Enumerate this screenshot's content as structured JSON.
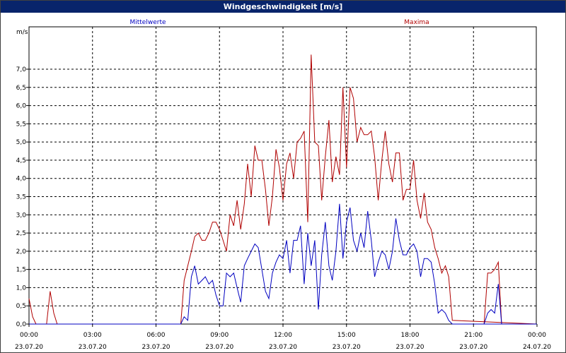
{
  "window": {
    "title": "Windgeschwindigkeit [m/s]"
  },
  "chart_data": {
    "type": "line",
    "title": "Windgeschwindigkeit [m/s]",
    "ylabel": "m/s",
    "ylim": [
      -0.4,
      7.7
    ],
    "xlim": [
      0,
      24
    ],
    "grid": true,
    "legend": [
      "Mittelwerte",
      "Maxima"
    ],
    "legend_placement": "top",
    "y_ticks": [
      "0,0",
      "0,5",
      "1,0",
      "1,5",
      "2,0",
      "2,5",
      "3,0",
      "3,5",
      "4,0",
      "4,5",
      "5,0",
      "5,5",
      "6,0",
      "6,5",
      "7,0"
    ],
    "x_ticks": [
      {
        "time": "00:00",
        "date": "23.07.20"
      },
      {
        "time": "03:00",
        "date": "23.07.20"
      },
      {
        "time": "06:00",
        "date": "23.07.20"
      },
      {
        "time": "09:00",
        "date": "23.07.20"
      },
      {
        "time": "12:00",
        "date": "23.07.20"
      },
      {
        "time": "15:00",
        "date": "23.07.20"
      },
      {
        "time": "18:00",
        "date": "23.07.20"
      },
      {
        "time": "21:00",
        "date": "23.07.20"
      },
      {
        "time": "00:00",
        "date": "24.07.20"
      }
    ],
    "series": [
      {
        "name": "Mittelwerte",
        "color": "#0000c0",
        "x": [
          0,
          7.17,
          7.33,
          7.5,
          7.67,
          7.83,
          8.0,
          8.17,
          8.33,
          8.5,
          8.67,
          8.83,
          9.0,
          9.17,
          9.33,
          9.5,
          9.67,
          9.83,
          10.0,
          10.17,
          10.33,
          10.5,
          10.67,
          10.83,
          11.0,
          11.17,
          11.33,
          11.5,
          11.67,
          11.83,
          12.0,
          12.17,
          12.33,
          12.5,
          12.67,
          12.83,
          13.0,
          13.17,
          13.33,
          13.5,
          13.67,
          13.83,
          14.0,
          14.17,
          14.33,
          14.5,
          14.67,
          14.83,
          15.0,
          15.17,
          15.33,
          15.5,
          15.67,
          15.83,
          16.0,
          16.17,
          16.33,
          16.5,
          16.67,
          16.83,
          17.0,
          17.17,
          17.33,
          17.5,
          17.67,
          17.83,
          18.0,
          18.17,
          18.33,
          18.5,
          18.67,
          18.83,
          19.0,
          19.17,
          19.33,
          19.5,
          19.67,
          19.83,
          20.0,
          24.0
        ],
        "values": [
          0,
          0,
          0.2,
          0.1,
          1.3,
          1.6,
          1.1,
          1.2,
          1.3,
          1.1,
          1.2,
          0.8,
          0.5,
          0.5,
          1.4,
          1.3,
          1.4,
          1.0,
          0.6,
          1.6,
          1.8,
          2.0,
          2.2,
          2.1,
          1.5,
          0.9,
          0.7,
          1.4,
          1.7,
          1.9,
          1.8,
          2.3,
          1.4,
          2.3,
          2.3,
          2.7,
          1.1,
          2.5,
          1.6,
          2.3,
          0.4,
          1.9,
          2.8,
          1.6,
          1.2,
          2.0,
          3.3,
          1.8,
          2.8,
          3.2,
          2.3,
          2.0,
          2.5,
          2.1,
          3.1,
          2.3,
          1.3,
          1.7,
          2.0,
          1.9,
          1.5,
          2.0,
          2.9,
          2.3,
          1.9,
          1.9,
          2.1,
          2.2,
          2.0,
          1.3,
          1.8,
          1.8,
          1.7,
          1.1,
          0.3,
          0.4,
          0.3,
          0.1,
          0,
          0
        ]
      },
      {
        "name": "Maxima",
        "color": "#b00000",
        "x": [
          0,
          0.17,
          0.33,
          0.5,
          0.67,
          0.83,
          1.0,
          1.17,
          1.33,
          1.5,
          7.17,
          7.33,
          7.5,
          7.67,
          7.83,
          8.0,
          8.17,
          8.33,
          8.5,
          8.67,
          8.83,
          9.0,
          9.17,
          9.33,
          9.5,
          9.67,
          9.83,
          10.0,
          10.17,
          10.33,
          10.5,
          10.67,
          10.83,
          11.0,
          11.17,
          11.33,
          11.5,
          11.67,
          11.83,
          12.0,
          12.17,
          12.33,
          12.5,
          12.67,
          12.83,
          13.0,
          13.17,
          13.33,
          13.5,
          13.67,
          13.83,
          14.0,
          14.17,
          14.33,
          14.5,
          14.67,
          14.83,
          15.0,
          15.17,
          15.33,
          15.5,
          15.67,
          15.83,
          16.0,
          16.17,
          16.33,
          16.5,
          16.67,
          16.83,
          17.0,
          17.17,
          17.33,
          17.5,
          17.67,
          17.83,
          18.0,
          18.17,
          18.33,
          18.5,
          18.67,
          18.83,
          19.0,
          19.17,
          19.33,
          19.5,
          19.67,
          19.83,
          20.0,
          24.0
        ],
        "values": [
          0.7,
          0.2,
          0,
          0,
          0,
          0,
          0.9,
          0.3,
          0,
          0,
          0,
          1.2,
          1.6,
          2.0,
          2.4,
          2.5,
          2.3,
          2.3,
          2.5,
          2.8,
          2.8,
          2.6,
          2.3,
          2.0,
          3.0,
          2.7,
          3.4,
          2.6,
          3.3,
          4.4,
          3.5,
          4.9,
          4.5,
          4.5,
          3.7,
          2.7,
          3.5,
          4.8,
          4.3,
          3.4,
          4.4,
          4.7,
          4.0,
          5.0,
          5.1,
          5.3,
          2.8,
          7.4,
          5.0,
          4.9,
          3.4,
          4.6,
          5.6,
          3.9,
          4.6,
          4.1,
          6.5,
          4.3,
          6.5,
          6.2,
          5.0,
          5.4,
          5.2,
          5.2,
          5.3,
          4.6,
          3.4,
          4.5,
          5.3,
          4.4,
          3.9,
          4.7,
          4.7,
          3.4,
          3.7,
          3.7,
          4.5,
          3.4,
          2.9,
          3.6,
          2.8,
          2.6,
          2.1,
          1.8,
          1.4,
          1.6,
          1.3,
          0.1,
          0
        ]
      },
      {
        "name": "Mittelwerte",
        "color": "#0000c0",
        "x": [
          21.0,
          21.5,
          21.67,
          21.83,
          22.0,
          22.17,
          22.33,
          24.0
        ],
        "values": [
          0,
          0,
          0.3,
          0.4,
          0.3,
          1.1,
          0,
          0
        ]
      },
      {
        "name": "Maxima",
        "color": "#b00000",
        "x": [
          21.0,
          21.5,
          21.67,
          21.83,
          22.0,
          22.17,
          22.33,
          24.0
        ],
        "values": [
          0,
          0,
          1.4,
          1.4,
          1.5,
          1.7,
          0,
          0
        ]
      }
    ]
  }
}
